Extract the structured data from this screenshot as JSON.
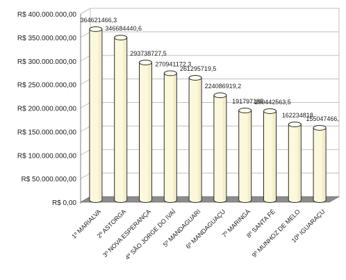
{
  "chart_data": {
    "type": "bar",
    "title": "",
    "xlabel": "",
    "ylabel": "",
    "ylim": [
      0,
      400000000
    ],
    "grid": true,
    "legend": "none",
    "yticks": [
      {
        "value": 0,
        "label": "R$ 0,00"
      },
      {
        "value": 50000000,
        "label": "R$ 50.000.000,00"
      },
      {
        "value": 100000000,
        "label": "R$ 100.000.000,00"
      },
      {
        "value": 150000000,
        "label": "R$ 150.000.000,00"
      },
      {
        "value": 200000000,
        "label": "R$ 200.000.000,00"
      },
      {
        "value": 250000000,
        "label": "R$ 250.000.000,00"
      },
      {
        "value": 300000000,
        "label": "R$ 300.000.000,00"
      },
      {
        "value": 350000000,
        "label": "R$ 350.000.000,00"
      },
      {
        "value": 400000000,
        "label": "R$ 400.000.000,00"
      }
    ],
    "categories": [
      "1º MARIALVA",
      "2º ASTORGA",
      "3º NOVA ESPERANÇA",
      "4º SÃO JORGE DO IVAÍ",
      "5º MANDAGUARI",
      "6º MANDAGUAÇU",
      "7º MARINGÁ",
      "8º SANTA FÉ",
      "9º MUNHOZ DE MELO",
      "10º IGUARAÇU"
    ],
    "values": [
      364621466.3,
      346684440.6,
      293738727.5,
      270941172.3,
      261295719.5,
      224086919.2,
      191797185,
      190442563.5,
      162234818,
      155047466
    ],
    "data_labels": [
      "364621466,3",
      "346684440,6",
      "293738727,5",
      "270941172,3",
      "261295719,5",
      "224086919,2",
      "191797185",
      "190442563,5",
      "162234818",
      "155047466,"
    ],
    "colors": {
      "bar_fill": "#fbf8dc",
      "bar_stroke": "#2a2a2a",
      "grid": "#bfbfbf",
      "floor": "#8c8c8c",
      "wall": "#ffffff",
      "axis": "#7f7f7f"
    }
  }
}
